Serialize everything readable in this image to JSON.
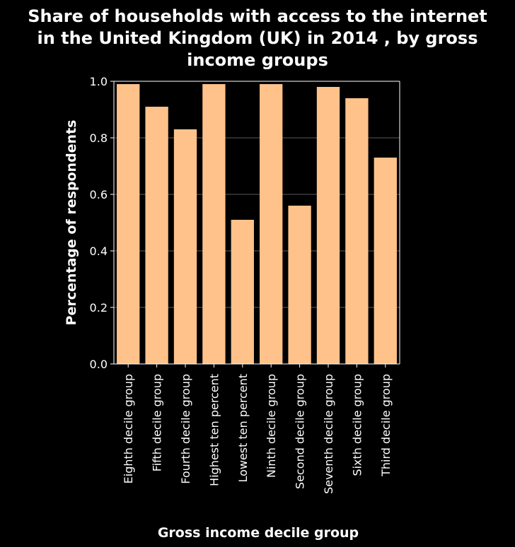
{
  "chart_data": {
    "type": "bar",
    "title": "Share of households with access to the internet in the United Kingdom (UK) in 2014 , by gross income groups",
    "title_lines": [
      "Share of households with access to the internet",
      "in the United Kingdom (UK) in 2014 , by gross",
      "income groups"
    ],
    "xlabel": "Gross income decile group",
    "ylabel": "Percentage of respondents",
    "categories": [
      "Eighth decile group",
      "Fifth decile group",
      "Fourth decile group",
      "Highest ten percent",
      "Lowest ten percent",
      "Ninth decile group",
      "Second decile group",
      "Seventh decile group",
      "Sixth decile group",
      "Third decile group"
    ],
    "values": [
      0.99,
      0.91,
      0.83,
      0.99,
      0.51,
      0.99,
      0.56,
      0.98,
      0.94,
      0.73
    ],
    "ylim": [
      0,
      1.0
    ],
    "yticks": [
      "0.0",
      "0.2",
      "0.4",
      "0.6",
      "0.8",
      "1.0"
    ],
    "grid": true,
    "colors": {
      "bar": "#ffc28a",
      "background": "#000000",
      "grid": "#5a5a5a",
      "text": "#ffffff"
    }
  }
}
